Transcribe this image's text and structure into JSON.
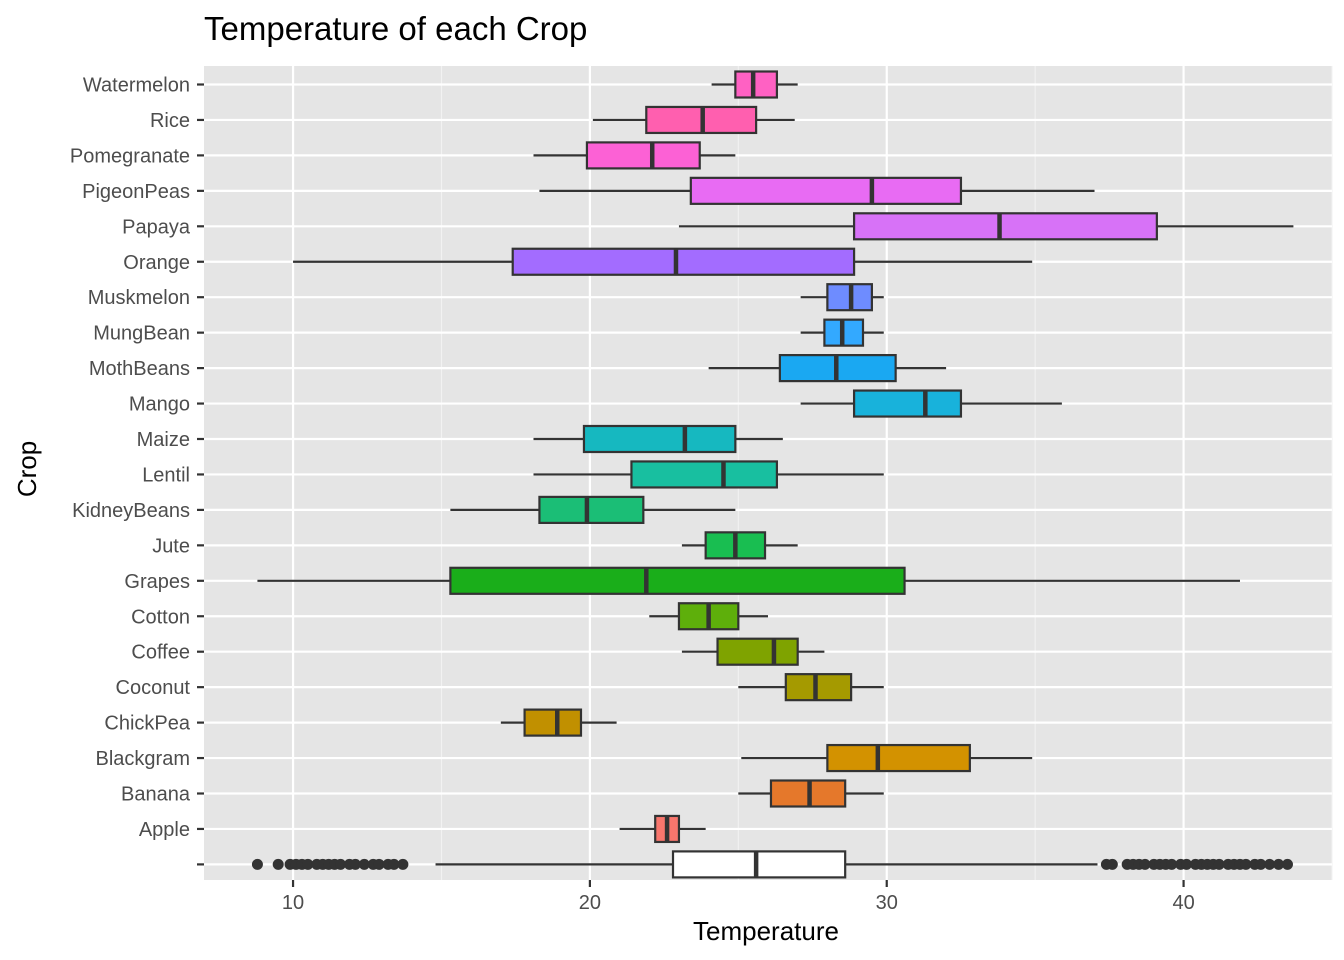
{
  "chart_data": {
    "type": "boxplot",
    "orientation": "horizontal",
    "title": "Temperature of each Crop",
    "xlabel": "Temperature",
    "ylabel": "Crop",
    "xlim": [
      7.0,
      45.0
    ],
    "xticks": [
      10,
      20,
      30,
      40
    ],
    "grid": true,
    "legend": "none",
    "background": "#E5E5E5",
    "categories": [
      "Watermelon",
      "Rice",
      "Pomegranate",
      "PigeonPeas",
      "Papaya",
      "Orange",
      "Muskmelon",
      "MungBean",
      "MothBeans",
      "Mango",
      "Maize",
      "Lentil",
      "KidneyBeans",
      "Jute",
      "Grapes",
      "Cotton",
      "Coffee",
      "Coconut",
      "ChickPea",
      "Blackgram",
      "Banana",
      "Apple",
      ""
    ],
    "boxes": [
      {
        "label": "Watermelon",
        "min": 24.1,
        "q1": 24.9,
        "median": 25.5,
        "q3": 26.3,
        "max": 27.0,
        "color": "#FF61C3"
      },
      {
        "label": "Rice",
        "min": 20.1,
        "q1": 21.9,
        "median": 23.8,
        "q3": 25.6,
        "max": 26.9,
        "color": "#FF5FAF"
      },
      {
        "label": "Pomegranate",
        "min": 18.1,
        "q1": 19.9,
        "median": 22.1,
        "q3": 23.7,
        "max": 24.9,
        "color": "#FC61D5"
      },
      {
        "label": "PigeonPeas",
        "min": 18.3,
        "q1": 23.4,
        "median": 29.5,
        "q3": 32.5,
        "max": 37.0,
        "color": "#E86BF3"
      },
      {
        "label": "Papaya",
        "min": 23.0,
        "q1": 28.9,
        "median": 33.8,
        "q3": 39.1,
        "max": 43.7,
        "color": "#D772F7"
      },
      {
        "label": "Orange",
        "min": 10.0,
        "q1": 17.4,
        "median": 22.9,
        "q3": 28.9,
        "max": 34.9,
        "color": "#A36CFF"
      },
      {
        "label": "Muskmelon",
        "min": 27.1,
        "q1": 28.0,
        "median": 28.8,
        "q3": 29.5,
        "max": 29.9,
        "color": "#6E8CFF"
      },
      {
        "label": "MungBean",
        "min": 27.1,
        "q1": 27.9,
        "median": 28.5,
        "q3": 29.2,
        "max": 29.9,
        "color": "#33A9FF"
      },
      {
        "label": "MothBeans",
        "min": 24.0,
        "q1": 26.4,
        "median": 28.3,
        "q3": 30.3,
        "max": 32.0,
        "color": "#1AA8F2"
      },
      {
        "label": "Mango",
        "min": 27.1,
        "q1": 28.9,
        "median": 31.3,
        "q3": 32.5,
        "max": 35.9,
        "color": "#18B2DB"
      },
      {
        "label": "Maize",
        "min": 18.1,
        "q1": 19.8,
        "median": 23.2,
        "q3": 24.9,
        "max": 26.5,
        "color": "#16B8C0"
      },
      {
        "label": "Lentil",
        "min": 18.1,
        "q1": 21.4,
        "median": 24.5,
        "q3": 26.3,
        "max": 29.9,
        "color": "#18BFA0"
      },
      {
        "label": "KidneyBeans",
        "min": 15.3,
        "q1": 18.3,
        "median": 19.9,
        "q3": 21.8,
        "max": 24.9,
        "color": "#1BBE76"
      },
      {
        "label": "Jute",
        "min": 23.1,
        "q1": 23.9,
        "median": 24.9,
        "q3": 25.9,
        "max": 27.0,
        "color": "#19BE51"
      },
      {
        "label": "Grapes",
        "min": 8.8,
        "q1": 15.3,
        "median": 21.9,
        "q3": 30.6,
        "max": 41.9,
        "color": "#1AAE1A"
      },
      {
        "label": "Cotton",
        "min": 22.0,
        "q1": 23.0,
        "median": 24.0,
        "q3": 25.0,
        "max": 26.0,
        "color": "#5EAF0B"
      },
      {
        "label": "Coffee",
        "min": 23.1,
        "q1": 24.3,
        "median": 26.2,
        "q3": 27.0,
        "max": 27.9,
        "color": "#7FA300"
      },
      {
        "label": "Coconut",
        "min": 25.0,
        "q1": 26.6,
        "median": 27.6,
        "q3": 28.8,
        "max": 29.9,
        "color": "#A59A00"
      },
      {
        "label": "ChickPea",
        "min": 17.0,
        "q1": 17.8,
        "median": 18.9,
        "q3": 19.7,
        "max": 20.9,
        "color": "#C19000"
      },
      {
        "label": "Blackgram",
        "min": 25.1,
        "q1": 28.0,
        "median": 29.7,
        "q3": 32.8,
        "max": 34.9,
        "color": "#D39200"
      },
      {
        "label": "Banana",
        "min": 25.0,
        "q1": 26.1,
        "median": 27.4,
        "q3": 28.6,
        "max": 29.9,
        "color": "#E5782B"
      },
      {
        "label": "Apple",
        "min": 21.0,
        "q1": 22.2,
        "median": 22.6,
        "q3": 23.0,
        "max": 23.9,
        "color": "#F8766D"
      },
      {
        "label": "",
        "min": 14.8,
        "q1": 22.8,
        "median": 25.6,
        "q3": 28.6,
        "max": 37.1,
        "color": "#FFFFFF",
        "outliers": [
          8.8,
          9.5,
          9.9,
          10.1,
          10.3,
          10.5,
          10.8,
          11.0,
          11.2,
          11.4,
          11.6,
          11.9,
          12.1,
          12.4,
          12.7,
          12.9,
          13.2,
          13.4,
          13.7,
          37.4,
          37.6,
          38.1,
          38.3,
          38.5,
          38.7,
          39.0,
          39.2,
          39.4,
          39.6,
          39.9,
          40.1,
          40.4,
          40.6,
          40.8,
          41.0,
          41.2,
          41.5,
          41.7,
          41.9,
          42.1,
          42.4,
          42.6,
          42.9,
          43.2,
          43.5
        ]
      }
    ]
  }
}
